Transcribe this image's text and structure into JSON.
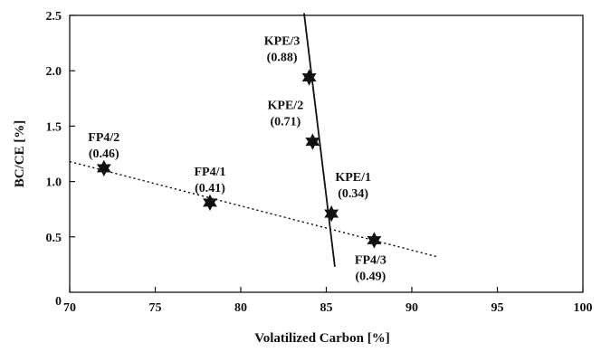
{
  "chart_data": {
    "type": "scatter",
    "title": "",
    "xlabel": "Volatilized Carbon [%]",
    "ylabel": "BC/CE [%]",
    "xlim": [
      70,
      100
    ],
    "ylim": [
      0,
      2.5
    ],
    "x_ticks": [
      {
        "value": 70,
        "label": "70"
      },
      {
        "value": 75,
        "label": "75"
      },
      {
        "value": 80,
        "label": "80"
      },
      {
        "value": 85,
        "label": "85"
      },
      {
        "value": 90,
        "label": "90"
      },
      {
        "value": 95,
        "label": "95"
      },
      {
        "value": 100,
        "label": "100"
      }
    ],
    "y_ticks": [
      {
        "value": 0,
        "label": "0"
      },
      {
        "value": 0.5,
        "label": "0.5"
      },
      {
        "value": 1.0,
        "label": "1.0"
      },
      {
        "value": 1.5,
        "label": "1.5"
      },
      {
        "value": 2.0,
        "label": "2.0"
      },
      {
        "value": 2.5,
        "label": "2.5"
      }
    ],
    "points": [
      {
        "label": "FP4/2",
        "value_label": "(0.46)",
        "x": 72.0,
        "y": 1.12,
        "label_pos": "above"
      },
      {
        "label": "FP4/1",
        "value_label": "(0.41)",
        "x": 78.2,
        "y": 0.81,
        "label_pos": "above"
      },
      {
        "label": "FP4/3",
        "value_label": "(0.49)",
        "x": 87.8,
        "y": 0.47,
        "label_pos": "below"
      },
      {
        "label": "KPE/1",
        "value_label": "(0.34)",
        "x": 85.3,
        "y": 0.71,
        "label_pos": "above-right"
      },
      {
        "label": "KPE/2",
        "value_label": "(0.71)",
        "x": 84.2,
        "y": 1.36,
        "label_pos": "above-left"
      },
      {
        "label": "KPE/3",
        "value_label": "(0.88)",
        "x": 84.0,
        "y": 1.94,
        "label_pos": "above-left"
      }
    ],
    "trend_lines": [
      {
        "style": "dotted",
        "from": {
          "x": 70.0,
          "y": 1.18
        },
        "to": {
          "x": 91.5,
          "y": 0.32
        }
      },
      {
        "style": "solid",
        "from": {
          "x": 83.7,
          "y": 2.52
        },
        "to": {
          "x": 85.5,
          "y": 0.23
        }
      }
    ],
    "marker": "six-point-star",
    "grid": false,
    "legend": "none"
  }
}
